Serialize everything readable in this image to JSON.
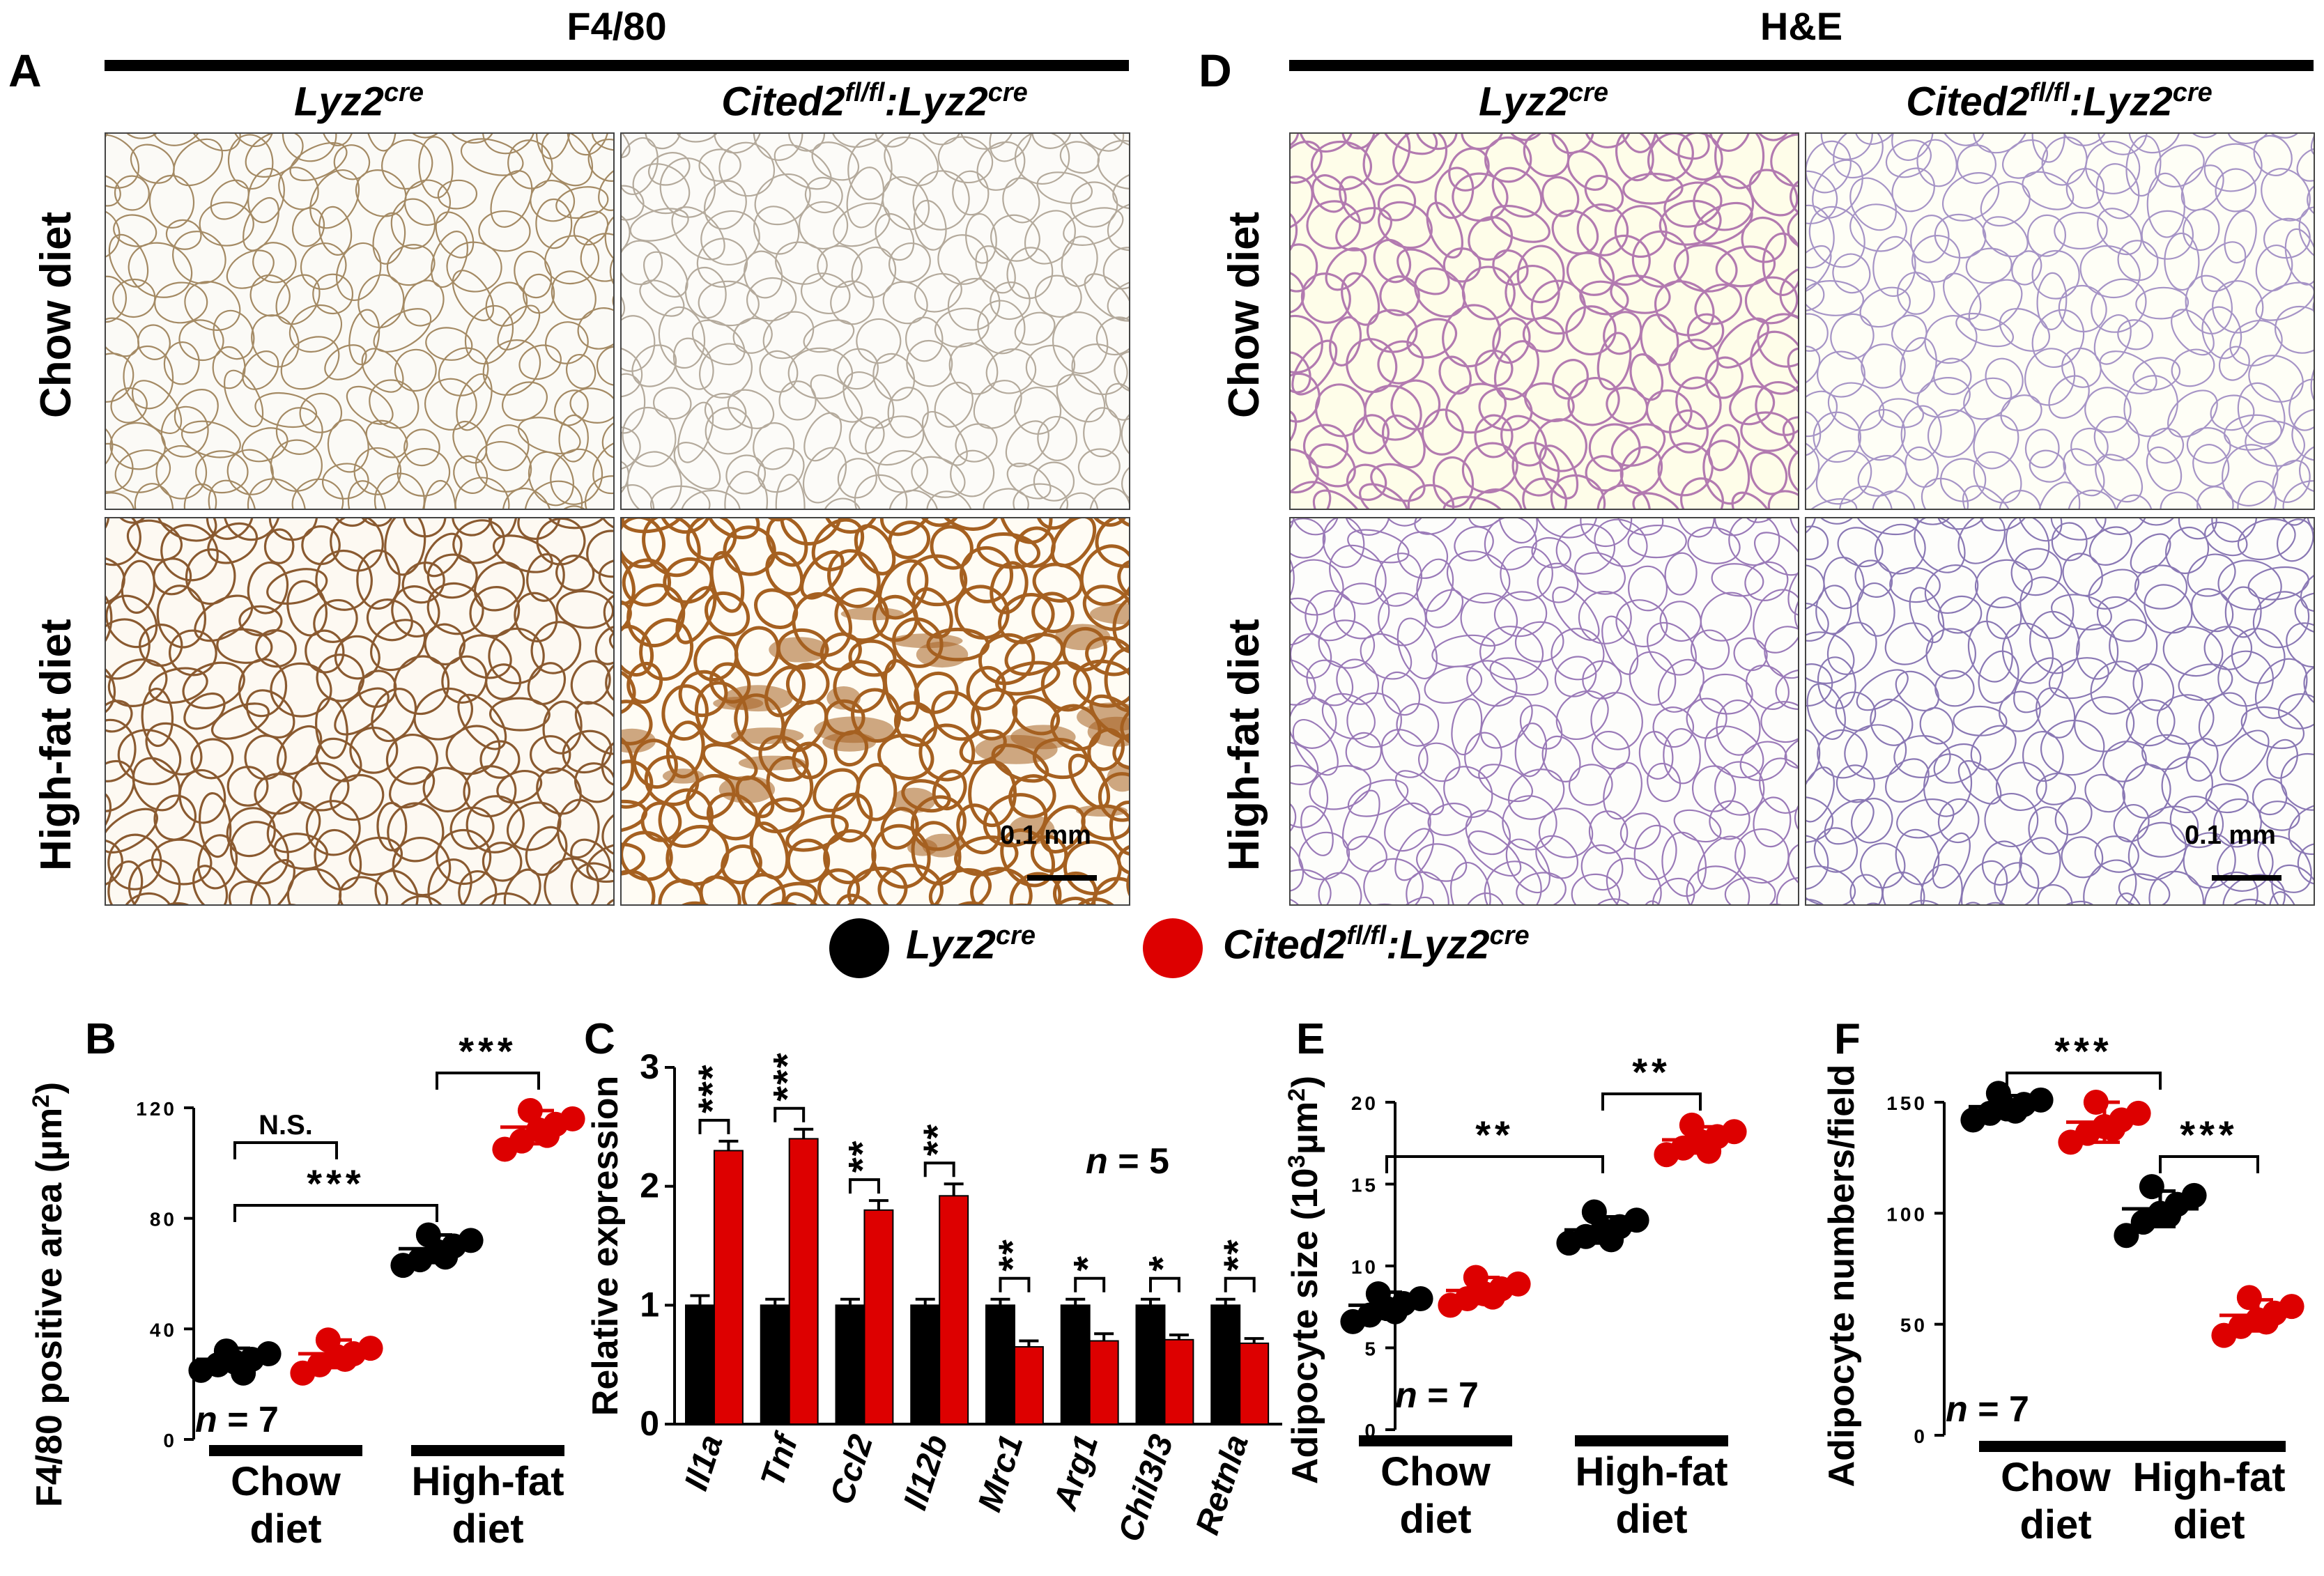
{
  "figure": {
    "panels": {
      "A": "A",
      "B": "B",
      "C": "C",
      "D": "D",
      "E": "E",
      "F": "F"
    },
    "stains": {
      "left": "F4/80",
      "right": "H&E"
    },
    "columns": {
      "ctrl": {
        "base": "Lyz2",
        "sup": "cre"
      },
      "ko": {
        "base1": "Cited2",
        "sup1": "fl/fl",
        "colon": ":",
        "base2": "Lyz2",
        "sup2": "cre"
      }
    },
    "rows": {
      "chow": "Chow diet",
      "hfd": "High-fat diet"
    },
    "scale_bar": "0.1 mm",
    "legend": {
      "ctrl_color": "#000000",
      "ko_color": "#dd0000"
    },
    "tissue": {
      "f480_chow_ctrl": {
        "bg": "#fbfaf6",
        "edge": "#a48a64",
        "density": "light"
      },
      "f480_chow_ko": {
        "bg": "#fcfbf8",
        "edge": "#b4aa9c",
        "density": "light"
      },
      "f480_hfd_ctrl": {
        "bg": "#fdf9f2",
        "edge": "#8a5a30",
        "density": "medium"
      },
      "f480_hfd_ko": {
        "bg": "#fffcf4",
        "edge": "#a56020",
        "density": "heavy"
      },
      "he_chow_ctrl": {
        "bg": "#fefde9",
        "edge": "#b27ab0",
        "density": "medium"
      },
      "he_chow_ko": {
        "bg": "#fefef6",
        "edge": "#a694c6",
        "density": "light"
      },
      "he_hfd_ctrl": {
        "bg": "#fdfdfb",
        "edge": "#9a7ab8",
        "density": "light"
      },
      "he_hfd_ko": {
        "bg": "#fdfdfb",
        "edge": "#8a78b4",
        "density": "light"
      }
    }
  },
  "chart_data": [
    {
      "id": "B",
      "type": "scatter",
      "ylabel_main": "F4/80 positive area (µm",
      "ylabel_sup": "2",
      "ylabel_tail": ")",
      "ylim": [
        0,
        120
      ],
      "yticks": [
        "0",
        "40",
        "80",
        "120"
      ],
      "groups": [
        {
          "line1": "Chow",
          "line2": "diet"
        },
        {
          "line1": "High-fat",
          "line2": "diet"
        }
      ],
      "n_label": "n = 7",
      "series": [
        {
          "group": 0,
          "genotype": "ctrl",
          "mean": 29,
          "sd": 4,
          "values": [
            25,
            27,
            28,
            29,
            31,
            32,
            24
          ]
        },
        {
          "group": 0,
          "genotype": "ko",
          "mean": 31,
          "sd": 5,
          "values": [
            24,
            27,
            30,
            31,
            33,
            36,
            29
          ]
        },
        {
          "group": 1,
          "genotype": "ctrl",
          "mean": 69,
          "sd": 5,
          "values": [
            63,
            65,
            68,
            70,
            72,
            74,
            66
          ]
        },
        {
          "group": 1,
          "genotype": "ko",
          "mean": 113,
          "sd": 6,
          "values": [
            105,
            108,
            112,
            114,
            116,
            119,
            110
          ]
        }
      ],
      "annotations": [
        {
          "text": "N.S.",
          "between": [
            "0ctrl",
            "0ko"
          ]
        },
        {
          "text": "***",
          "between": [
            "1ctrl",
            "1ko"
          ]
        },
        {
          "text": "***",
          "between": [
            "0ctrl",
            "1ctrl"
          ]
        }
      ]
    },
    {
      "id": "C",
      "type": "bar",
      "ylabel": "Relative expression",
      "ylim": [
        0,
        3
      ],
      "yticks": [
        "0",
        "1",
        "2",
        "3"
      ],
      "categories": [
        "Il1a",
        "Tnf",
        "Ccl2",
        "Il12b",
        "Mrc1",
        "Arg1",
        "Chil3l3",
        "Retnla"
      ],
      "n_label": "n = 5",
      "series": [
        {
          "genotype": "ctrl",
          "values": [
            1.0,
            1.0,
            1.0,
            1.0,
            1.0,
            1.0,
            1.0,
            1.0
          ],
          "errors": [
            0.08,
            0.05,
            0.05,
            0.05,
            0.05,
            0.05,
            0.05,
            0.05
          ]
        },
        {
          "genotype": "ko",
          "values": [
            2.3,
            2.4,
            1.8,
            1.92,
            0.65,
            0.7,
            0.71,
            0.68
          ],
          "errors": [
            0.08,
            0.08,
            0.08,
            0.1,
            0.05,
            0.06,
            0.04,
            0.04
          ]
        }
      ],
      "significance": [
        "***",
        "***",
        "**",
        "**",
        "**",
        "*",
        "*",
        "**"
      ]
    },
    {
      "id": "E",
      "type": "scatter",
      "ylabel_main": "Adipocyte size (10",
      "ylabel_sup": "3",
      "ylabel_tail": "µm",
      "ylabel_sup2": "2",
      "ylabel_end": ")",
      "ylim": [
        0,
        20
      ],
      "yticks": [
        "0",
        "5",
        "10",
        "15",
        "20"
      ],
      "groups": [
        {
          "line1": "Chow",
          "line2": "diet"
        },
        {
          "line1": "High-fat",
          "line2": "diet"
        }
      ],
      "n_label": "n = 7",
      "series": [
        {
          "group": 0,
          "genotype": "ctrl",
          "mean": 7.6,
          "sd": 0.8,
          "values": [
            6.6,
            7.0,
            7.4,
            7.7,
            8.0,
            8.3,
            7.2
          ]
        },
        {
          "group": 0,
          "genotype": "ko",
          "mean": 8.5,
          "sd": 0.8,
          "values": [
            7.6,
            8.0,
            8.3,
            8.6,
            8.9,
            9.3,
            8.1
          ]
        },
        {
          "group": 1,
          "genotype": "ctrl",
          "mean": 12.2,
          "sd": 0.8,
          "values": [
            11.4,
            11.8,
            12.2,
            12.4,
            12.8,
            13.3,
            11.6
          ]
        },
        {
          "group": 1,
          "genotype": "ko",
          "mean": 17.7,
          "sd": 0.8,
          "values": [
            16.8,
            17.2,
            17.6,
            17.9,
            18.2,
            18.6,
            17.0
          ]
        }
      ],
      "annotations": [
        {
          "text": "**",
          "between": [
            "1ctrl",
            "1ko"
          ]
        },
        {
          "text": "**",
          "between": [
            "0ctrl",
            "1ctrl"
          ]
        }
      ]
    },
    {
      "id": "F",
      "type": "scatter",
      "ylabel": "Adipocyte numbers/field",
      "ylim": [
        0,
        150
      ],
      "yticks": [
        "0",
        "50",
        "100",
        "150"
      ],
      "groups": [
        {
          "line1": "Chow",
          "line2": "diet"
        },
        {
          "line1": "High-fat",
          "line2": "diet"
        }
      ],
      "n_label": "n = 7",
      "series": [
        {
          "group": 0,
          "genotype": "ctrl",
          "mean": 148,
          "sd": 5,
          "values": [
            142,
            145,
            147,
            149,
            151,
            154,
            146
          ]
        },
        {
          "group": 0,
          "genotype": "ko",
          "mean": 141,
          "sd": 9,
          "values": [
            132,
            136,
            139,
            142,
            145,
            150,
            138
          ]
        },
        {
          "group": 1,
          "genotype": "ctrl",
          "mean": 102,
          "sd": 8,
          "values": [
            90,
            96,
            100,
            104,
            108,
            112,
            99
          ]
        },
        {
          "group": 1,
          "genotype": "ko",
          "mean": 54,
          "sd": 7,
          "values": [
            45,
            49,
            52,
            55,
            58,
            62,
            51
          ]
        }
      ],
      "annotations": [
        {
          "text": "***",
          "between": [
            "0ctrl",
            "1ctrl"
          ]
        },
        {
          "text": "***",
          "between": [
            "1ctrl",
            "1ko"
          ]
        }
      ]
    }
  ]
}
